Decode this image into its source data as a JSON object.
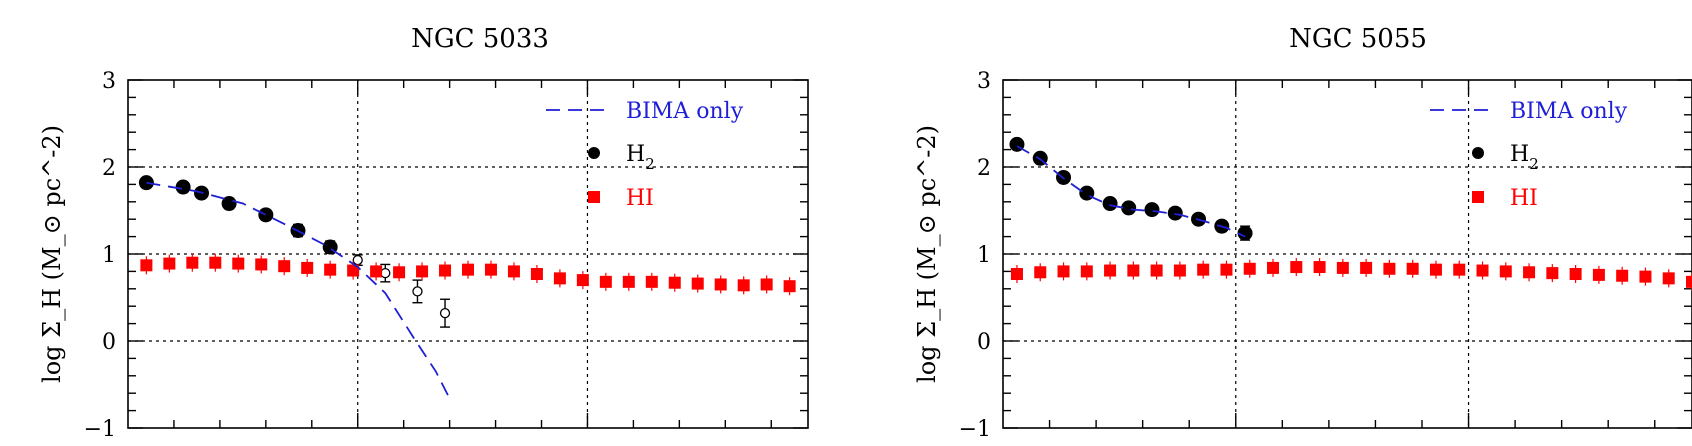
{
  "chart_data": [
    {
      "type": "scatter",
      "title": "NGC 5033",
      "ylabel": "log Σ_H (M_⊙ pc^-2)",
      "ylim": [
        -1,
        3
      ],
      "xlim": [
        0,
        14.8
      ],
      "y_ticks": [
        "3",
        "2",
        "1",
        "0",
        "−1"
      ],
      "grid": "dotted at y = 1, 2 and x = 5, 10",
      "legend": {
        "position": "top-right",
        "entries": [
          "BIMA only",
          "H2",
          "HI"
        ],
        "h2_main": "H",
        "h2_sub": "2"
      },
      "colors": {
        "bima": "#1f1fd6",
        "hi": "#ff0000",
        "h2": "#000000"
      },
      "series": [
        {
          "name": "H2",
          "marker": "filled-circle",
          "x": [
            0.4,
            1.2,
            1.6,
            2.2,
            3.0,
            3.7,
            4.4
          ],
          "y": [
            1.82,
            1.77,
            1.7,
            1.58,
            1.45,
            1.27,
            1.08
          ],
          "err": [
            0.04,
            0.05,
            0.05,
            0.06,
            0.06,
            0.07,
            0.07
          ]
        },
        {
          "name": "H2",
          "marker": "open-circle",
          "x": [
            5.0,
            5.6,
            6.3,
            6.9
          ],
          "y": [
            0.93,
            0.78,
            0.57,
            0.32
          ],
          "err": [
            0.06,
            0.1,
            0.13,
            0.16
          ]
        },
        {
          "name": "HI",
          "marker": "square",
          "x": [
            0.4,
            0.9,
            1.4,
            1.9,
            2.4,
            2.9,
            3.4,
            3.9,
            4.4,
            4.9,
            5.4,
            5.9,
            6.4,
            6.9,
            7.4,
            7.9,
            8.4,
            8.9,
            9.4,
            9.9,
            10.4,
            10.9,
            11.4,
            11.9,
            12.4,
            12.9,
            13.4,
            13.9,
            14.4
          ],
          "y": [
            0.87,
            0.89,
            0.9,
            0.9,
            0.89,
            0.88,
            0.86,
            0.84,
            0.82,
            0.81,
            0.8,
            0.79,
            0.8,
            0.81,
            0.82,
            0.82,
            0.8,
            0.77,
            0.72,
            0.7,
            0.68,
            0.68,
            0.68,
            0.67,
            0.66,
            0.65,
            0.64,
            0.65,
            0.63
          ]
        },
        {
          "name": "BIMA only",
          "line": "dashed",
          "x": [
            0.4,
            1.5,
            2.5,
            3.5,
            4.3,
            5.0,
            5.6,
            6.2,
            6.7,
            7.0
          ],
          "y": [
            1.82,
            1.72,
            1.58,
            1.32,
            1.1,
            0.85,
            0.55,
            0.05,
            -0.35,
            -0.66
          ]
        }
      ]
    },
    {
      "type": "scatter",
      "title": "NGC 5055",
      "ylabel": "log Σ_H (M_⊙ pc^-2)",
      "ylim": [
        -1,
        3
      ],
      "xlim": [
        0,
        14.8
      ],
      "y_ticks": [
        "3",
        "2",
        "1",
        "0",
        "−1"
      ],
      "grid": "dotted at y = 1, 2 and x = 5, 10",
      "legend": {
        "position": "top-right",
        "entries": [
          "BIMA only",
          "H2",
          "HI"
        ],
        "h2_main": "H",
        "h2_sub": "2"
      },
      "colors": {
        "bima": "#1f1fd6",
        "hi": "#ff0000",
        "h2": "#000000"
      },
      "series": [
        {
          "name": "H2",
          "marker": "filled-circle",
          "x": [
            0.3,
            0.8,
            1.3,
            1.8,
            2.3,
            2.7,
            3.2,
            3.7,
            4.2,
            4.7,
            5.2
          ],
          "y": [
            2.26,
            2.1,
            1.88,
            1.7,
            1.58,
            1.53,
            1.51,
            1.47,
            1.4,
            1.32,
            1.24
          ],
          "err": [
            0.05,
            0.04,
            0.05,
            0.05,
            0.04,
            0.04,
            0.04,
            0.05,
            0.05,
            0.06,
            0.08
          ]
        },
        {
          "name": "HI",
          "marker": "square",
          "x": [
            0.3,
            0.8,
            1.3,
            1.8,
            2.3,
            2.8,
            3.3,
            3.8,
            4.3,
            4.8,
            5.3,
            5.8,
            6.3,
            6.8,
            7.3,
            7.8,
            8.3,
            8.8,
            9.3,
            9.8,
            10.3,
            10.8,
            11.3,
            11.8,
            12.3,
            12.8,
            13.3,
            13.8,
            14.3,
            14.8
          ],
          "y": [
            0.77,
            0.79,
            0.8,
            0.8,
            0.81,
            0.81,
            0.81,
            0.81,
            0.82,
            0.82,
            0.83,
            0.84,
            0.85,
            0.85,
            0.84,
            0.84,
            0.83,
            0.83,
            0.82,
            0.82,
            0.81,
            0.8,
            0.79,
            0.78,
            0.77,
            0.76,
            0.75,
            0.74,
            0.72,
            0.68
          ]
        },
        {
          "name": "BIMA only",
          "line": "dashed",
          "x": [
            0.3,
            0.8,
            1.3,
            1.8,
            2.3,
            2.8,
            3.3,
            3.8,
            4.3,
            4.8,
            5.2
          ],
          "y": [
            2.24,
            2.09,
            1.87,
            1.68,
            1.56,
            1.51,
            1.49,
            1.45,
            1.38,
            1.3,
            1.2
          ]
        }
      ]
    }
  ]
}
